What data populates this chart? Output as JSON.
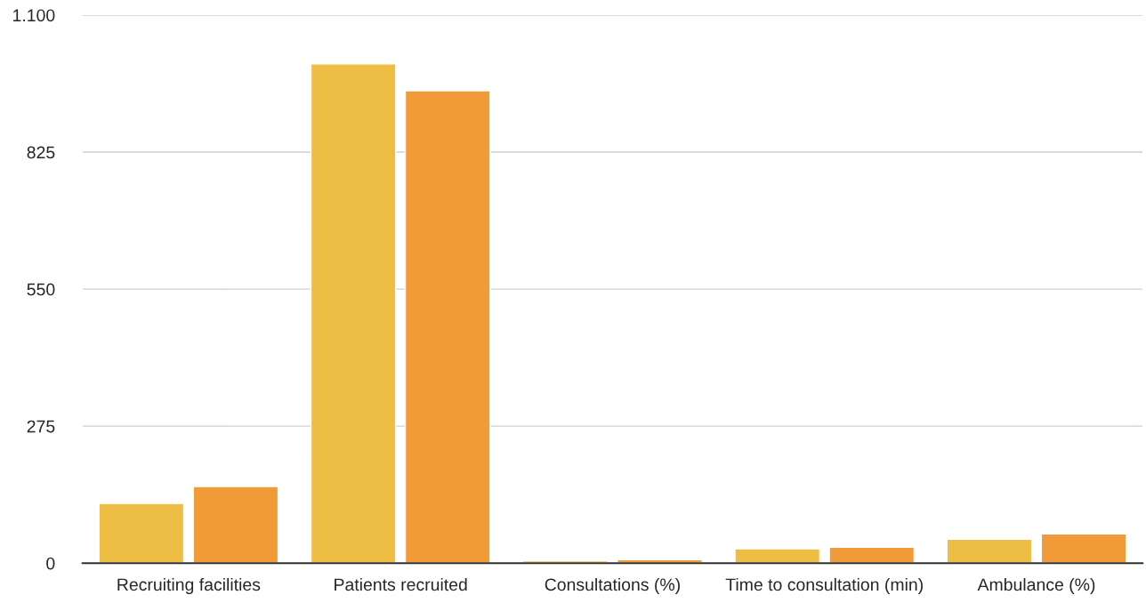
{
  "chart_data": {
    "type": "bar",
    "categories": [
      "Recruiting facilities",
      "Patients recruited",
      "Consultations (%)",
      "Time to consultation (min)",
      "Ambulance (%)"
    ],
    "series": [
      {
        "color": "#eebd44",
        "values": [
          120,
          1002,
          5,
          29,
          48
        ]
      },
      {
        "color": "#f09a38",
        "values": [
          154,
          948,
          7,
          32,
          59
        ]
      }
    ],
    "ylim": [
      0,
      1100
    ],
    "yticks": [
      0,
      275,
      550,
      825,
      {
        "value": 1100,
        "label": "1.100"
      }
    ],
    "grid": "y"
  }
}
